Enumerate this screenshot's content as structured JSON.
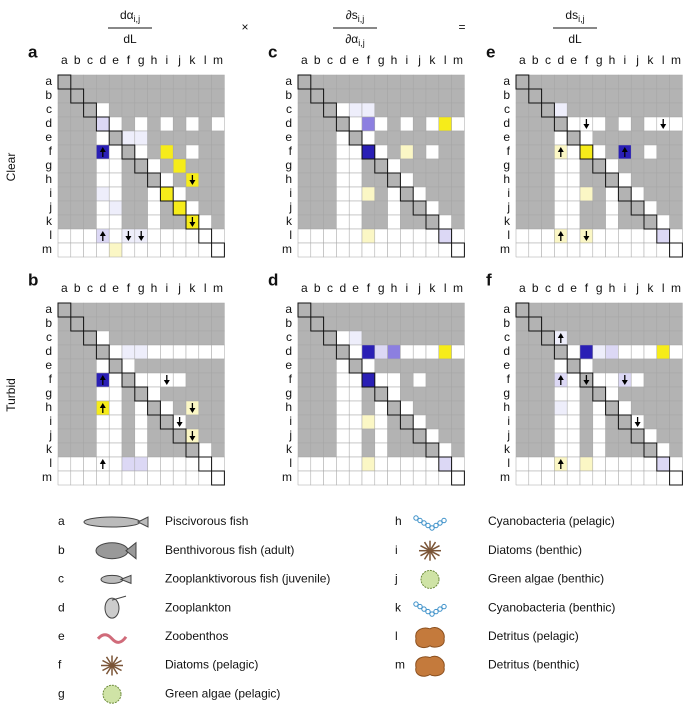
{
  "header": {
    "terms": [
      {
        "numerator": "dα",
        "numerator_sub": "i,j",
        "denominator": "dL"
      },
      {
        "numerator": "∂s",
        "numerator_sub": "i,j",
        "denominator": "∂α",
        "denominator_sub": "i,j"
      },
      {
        "numerator": "ds",
        "numerator_sub": "i,j",
        "denominator": "dL"
      }
    ],
    "operators": [
      "×",
      "="
    ]
  },
  "conditions": [
    "Clear",
    "Turbid"
  ],
  "axis_labels": [
    "a",
    "b",
    "c",
    "d",
    "e",
    "f",
    "g",
    "h",
    "i",
    "j",
    "k",
    "l",
    "m"
  ],
  "panels": [
    {
      "letter": "a"
    },
    {
      "letter": "b"
    },
    {
      "letter": "c"
    },
    {
      "letter": "d"
    },
    {
      "letter": "e"
    },
    {
      "letter": "f"
    }
  ],
  "legend": [
    {
      "key": "a",
      "label": "Piscivorous fish"
    },
    {
      "key": "b",
      "label": "Benthivorous fish (adult)"
    },
    {
      "key": "c",
      "label": "Zooplanktivorous fish (juvenile)"
    },
    {
      "key": "d",
      "label": "Zooplankton"
    },
    {
      "key": "e",
      "label": "Zoobenthos"
    },
    {
      "key": "f",
      "label": "Diatoms (pelagic)"
    },
    {
      "key": "g",
      "label": "Green algae (pelagic)"
    },
    {
      "key": "h",
      "label": "Cyanobacteria (pelagic)"
    },
    {
      "key": "i",
      "label": "Diatoms (benthic)"
    },
    {
      "key": "j",
      "label": "Green algae (benthic)"
    },
    {
      "key": "k",
      "label": "Cyanobacteria (benthic)"
    },
    {
      "key": "l",
      "label": "Detritus (pelagic)"
    },
    {
      "key": "m",
      "label": "Detritus (benthic)"
    }
  ]
}
